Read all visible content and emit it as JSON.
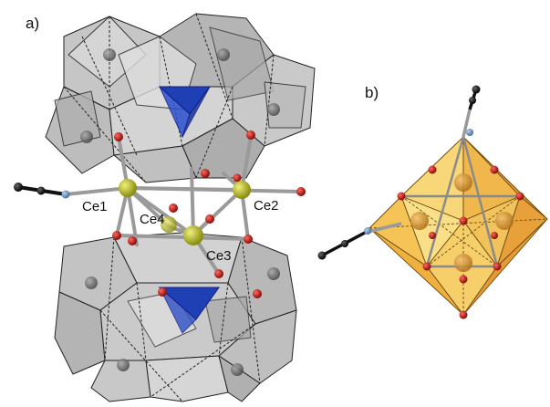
{
  "panels": {
    "a": {
      "label": "a)"
    },
    "b": {
      "label": "b)"
    }
  },
  "atom_labels": {
    "ce1": "Ce1",
    "ce2": "Ce2",
    "ce3": "Ce3",
    "ce4": "Ce4"
  },
  "colors": {
    "polyhedron_grey": "#b9b9b9",
    "polyhedron_edge": "#222222",
    "tetrahedron_blue": "#1f3fb5",
    "cerium": "#c8cc2a",
    "oxygen": "#c01818",
    "nitrogen": "#6f95c8",
    "carbon": "#1c1c1c",
    "core_yellow": "#f2c84a",
    "core_orange": "#e8962c"
  }
}
